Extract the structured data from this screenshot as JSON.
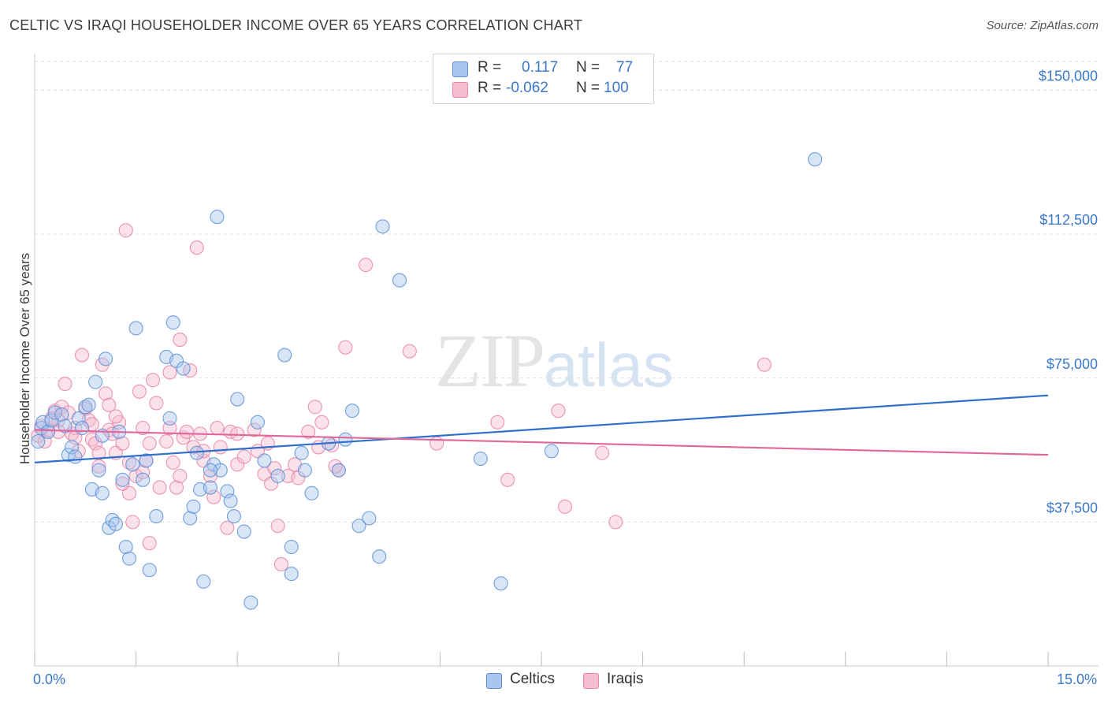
{
  "title": "CELTIC VS IRAQI HOUSEHOLDER INCOME OVER 65 YEARS CORRELATION CHART",
  "source": "Source: ZipAtlas.com",
  "watermark": {
    "zip": "ZIP",
    "atlas": "atlas"
  },
  "colors": {
    "celtics_fill": "#a9c6ee",
    "celtics_stroke": "#5b8fd6",
    "celtics_line": "#2e6fcc",
    "iraqis_fill": "#f6bcd0",
    "iraqis_stroke": "#e882a8",
    "iraqis_line": "#e0679a",
    "axis_text": "#3a78c8",
    "grid": "#dddddd"
  },
  "stats": [
    {
      "r_label": "R =",
      "r_value": "0.117",
      "n_label": "N =",
      "n_value": "77"
    },
    {
      "r_label": "R =",
      "r_value": "-0.062",
      "n_label": "N =",
      "n_value": "100"
    }
  ],
  "legend": {
    "celtics": "Celtics",
    "iraqis": "Iraqis"
  },
  "chart_data": {
    "type": "scatter",
    "title": "CELTIC VS IRAQI HOUSEHOLDER INCOME OVER 65 YEARS CORRELATION CHART",
    "xlabel": "",
    "ylabel": "Householder Income Over 65 years",
    "xlim": [
      0,
      15
    ],
    "ylim": [
      0,
      157500
    ],
    "x_tick_labels": [
      "0.0%",
      "15.0%"
    ],
    "y_ticks": [
      37500,
      75000,
      112500,
      150000
    ],
    "y_tick_labels": [
      "$37,500",
      "$75,000",
      "$112,500",
      "$150,000"
    ],
    "grid": true,
    "series": [
      {
        "name": "Celtics",
        "trend": {
          "x": [
            0,
            15
          ],
          "y": [
            53000,
            70500
          ]
        },
        "points": [
          [
            0.05,
            58500
          ],
          [
            0.1,
            62000
          ],
          [
            0.12,
            63500
          ],
          [
            0.2,
            61000
          ],
          [
            0.25,
            64000
          ],
          [
            0.3,
            66000
          ],
          [
            0.4,
            65500
          ],
          [
            0.45,
            62500
          ],
          [
            0.5,
            55000
          ],
          [
            0.55,
            57000
          ],
          [
            0.6,
            54500
          ],
          [
            0.65,
            64500
          ],
          [
            0.7,
            62000
          ],
          [
            0.75,
            67500
          ],
          [
            0.8,
            68000
          ],
          [
            0.85,
            46000
          ],
          [
            0.9,
            74000
          ],
          [
            0.95,
            51000
          ],
          [
            1.0,
            45000
          ],
          [
            1.05,
            80000
          ],
          [
            1.1,
            36000
          ],
          [
            1.15,
            38000
          ],
          [
            1.2,
            37000
          ],
          [
            1.25,
            61000
          ],
          [
            1.3,
            48500
          ],
          [
            1.35,
            31000
          ],
          [
            1.4,
            28000
          ],
          [
            1.45,
            52500
          ],
          [
            1.5,
            88000
          ],
          [
            1.6,
            48500
          ],
          [
            1.65,
            53500
          ],
          [
            1.7,
            25000
          ],
          [
            1.8,
            39000
          ],
          [
            1.95,
            80500
          ],
          [
            2.0,
            64500
          ],
          [
            2.05,
            89500
          ],
          [
            2.1,
            79500
          ],
          [
            2.2,
            77500
          ],
          [
            2.3,
            38500
          ],
          [
            2.35,
            41500
          ],
          [
            2.4,
            55500
          ],
          [
            2.45,
            46000
          ],
          [
            2.5,
            22000
          ],
          [
            2.6,
            46500
          ],
          [
            2.65,
            52500
          ],
          [
            2.7,
            117000
          ],
          [
            2.75,
            51000
          ],
          [
            2.85,
            45500
          ],
          [
            2.9,
            43000
          ],
          [
            2.95,
            39000
          ],
          [
            3.0,
            69500
          ],
          [
            3.1,
            35000
          ],
          [
            3.2,
            16500
          ],
          [
            3.3,
            63500
          ],
          [
            3.4,
            53500
          ],
          [
            3.6,
            49500
          ],
          [
            3.7,
            81000
          ],
          [
            3.8,
            31000
          ],
          [
            3.8,
            24000
          ],
          [
            3.95,
            55500
          ],
          [
            4.0,
            51000
          ],
          [
            4.1,
            45000
          ],
          [
            4.35,
            58000
          ],
          [
            4.5,
            51000
          ],
          [
            4.7,
            66500
          ],
          [
            4.8,
            36500
          ],
          [
            4.95,
            38500
          ],
          [
            5.1,
            28500
          ],
          [
            5.15,
            114500
          ],
          [
            5.4,
            100500
          ],
          [
            6.6,
            54000
          ],
          [
            6.9,
            21500
          ],
          [
            7.65,
            56000
          ],
          [
            11.55,
            132000
          ],
          [
            1.0,
            60000
          ],
          [
            2.6,
            51000
          ],
          [
            4.6,
            59000
          ]
        ]
      },
      {
        "name": "Iraqis",
        "trend": {
          "x": [
            0,
            15
          ],
          "y": [
            61500,
            55000
          ]
        },
        "points": [
          [
            0.05,
            60000
          ],
          [
            0.1,
            62500
          ],
          [
            0.15,
            58500
          ],
          [
            0.2,
            61500
          ],
          [
            0.3,
            66500
          ],
          [
            0.35,
            64000
          ],
          [
            0.4,
            67500
          ],
          [
            0.45,
            73500
          ],
          [
            0.5,
            66000
          ],
          [
            0.55,
            60500
          ],
          [
            0.6,
            62000
          ],
          [
            0.65,
            56000
          ],
          [
            0.7,
            81000
          ],
          [
            0.75,
            67000
          ],
          [
            0.8,
            64000
          ],
          [
            0.85,
            59000
          ],
          [
            0.9,
            58000
          ],
          [
            0.95,
            55500
          ],
          [
            1.0,
            78500
          ],
          [
            1.05,
            71000
          ],
          [
            1.1,
            61500
          ],
          [
            1.15,
            60500
          ],
          [
            1.2,
            55500
          ],
          [
            1.25,
            63500
          ],
          [
            1.3,
            58000
          ],
          [
            1.35,
            113500
          ],
          [
            1.4,
            53000
          ],
          [
            1.45,
            37500
          ],
          [
            1.5,
            49500
          ],
          [
            1.55,
            71500
          ],
          [
            1.6,
            62000
          ],
          [
            1.65,
            53500
          ],
          [
            1.7,
            32000
          ],
          [
            1.75,
            74500
          ],
          [
            1.8,
            68500
          ],
          [
            1.85,
            46500
          ],
          [
            1.95,
            58500
          ],
          [
            2.0,
            76500
          ],
          [
            2.05,
            53000
          ],
          [
            2.1,
            46500
          ],
          [
            2.15,
            85000
          ],
          [
            2.2,
            59500
          ],
          [
            2.25,
            61000
          ],
          [
            2.3,
            77000
          ],
          [
            2.35,
            57000
          ],
          [
            2.4,
            109000
          ],
          [
            2.45,
            60500
          ],
          [
            2.5,
            53500
          ],
          [
            2.6,
            49500
          ],
          [
            2.65,
            44000
          ],
          [
            2.75,
            57000
          ],
          [
            2.85,
            36000
          ],
          [
            3.0,
            52500
          ],
          [
            3.1,
            54500
          ],
          [
            3.25,
            61500
          ],
          [
            3.4,
            50000
          ],
          [
            3.5,
            47500
          ],
          [
            3.55,
            51500
          ],
          [
            3.6,
            36500
          ],
          [
            3.65,
            26500
          ],
          [
            3.75,
            49500
          ],
          [
            3.85,
            52500
          ],
          [
            4.05,
            61000
          ],
          [
            4.15,
            67500
          ],
          [
            4.25,
            63500
          ],
          [
            4.4,
            57500
          ],
          [
            4.5,
            51000
          ],
          [
            4.6,
            83000
          ],
          [
            4.9,
            104500
          ],
          [
            5.55,
            82000
          ],
          [
            5.95,
            58000
          ],
          [
            6.85,
            63500
          ],
          [
            7.0,
            48500
          ],
          [
            7.75,
            66500
          ],
          [
            7.85,
            41500
          ],
          [
            8.4,
            55500
          ],
          [
            8.6,
            37500
          ],
          [
            10.8,
            78500
          ],
          [
            0.25,
            64500
          ],
          [
            0.6,
            59500
          ],
          [
            1.1,
            68000
          ],
          [
            1.4,
            45000
          ],
          [
            2.0,
            62000
          ],
          [
            2.9,
            61000
          ],
          [
            3.3,
            56000
          ],
          [
            3.9,
            49000
          ],
          [
            4.2,
            57000
          ],
          [
            4.45,
            52000
          ],
          [
            1.7,
            58000
          ],
          [
            2.5,
            56000
          ],
          [
            0.85,
            63000
          ],
          [
            1.2,
            65000
          ],
          [
            1.6,
            50500
          ],
          [
            2.15,
            49500
          ],
          [
            3.0,
            60500
          ],
          [
            3.45,
            58000
          ],
          [
            0.35,
            61000
          ],
          [
            0.95,
            52000
          ],
          [
            2.7,
            62000
          ],
          [
            1.3,
            47500
          ]
        ]
      }
    ]
  }
}
